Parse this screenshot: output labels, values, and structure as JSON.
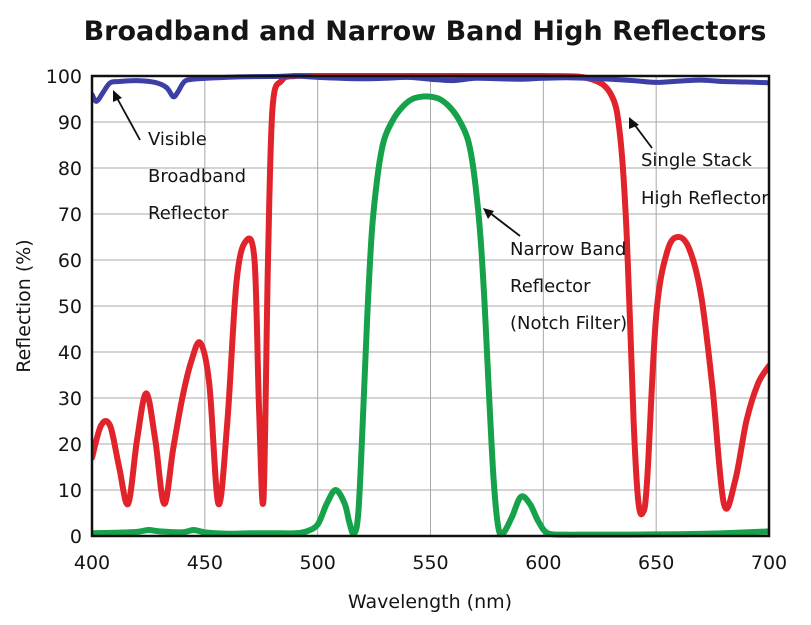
{
  "chart_data": {
    "type": "line",
    "title": "Broadband and Narrow Band High Reflectors",
    "xlabel": "Wavelength (nm)",
    "ylabel": "Reflection (%)",
    "xlim": [
      400,
      700
    ],
    "ylim": [
      0,
      100
    ],
    "xticks": [
      400,
      450,
      500,
      550,
      600,
      650,
      700
    ],
    "yticks": [
      0,
      10,
      20,
      30,
      40,
      50,
      60,
      70,
      80,
      90,
      100
    ],
    "grid": true,
    "series": [
      {
        "name": "Visible Broadband Reflector",
        "color": "#3b3fa6",
        "x": [
          400,
          402,
          405,
          408,
          412,
          420,
          428,
          433,
          436,
          438,
          441,
          445,
          455,
          465,
          480,
          490,
          500,
          510,
          520,
          530,
          540,
          550,
          560,
          570,
          580,
          590,
          600,
          610,
          620,
          630,
          640,
          650,
          660,
          670,
          680,
          690,
          700
        ],
        "y": [
          96,
          94.5,
          96.5,
          98.5,
          98.8,
          99,
          98.6,
          97.5,
          95.5,
          96.5,
          98.8,
          99.3,
          99.6,
          99.8,
          99.9,
          100,
          99.7,
          99.5,
          99.4,
          99.5,
          99.7,
          99.3,
          99,
          99.5,
          99.4,
          99.3,
          99.5,
          99.6,
          99.5,
          99.3,
          99,
          98.6,
          98.9,
          99.1,
          98.8,
          98.7,
          98.5
        ]
      },
      {
        "name": "Single Stack High Reflector",
        "color": "#e1232c",
        "x": [
          400,
          404,
          408,
          412,
          416,
          420,
          424,
          428,
          432,
          436,
          440,
          444,
          448,
          452,
          456,
          460,
          464,
          468,
          472,
          474,
          476,
          478,
          480,
          484,
          490,
          500,
          520,
          540,
          560,
          580,
          600,
          620,
          630,
          634,
          637,
          640,
          642,
          644,
          646,
          650,
          655,
          660,
          665,
          670,
          675,
          680,
          685,
          690,
          695,
          700
        ],
        "y": [
          17,
          24,
          24,
          15,
          7,
          21,
          31,
          21,
          7,
          19,
          30,
          38,
          42,
          33,
          7,
          25,
          55,
          64,
          60,
          28,
          8,
          60,
          93,
          99,
          100,
          100,
          100,
          100,
          100,
          100,
          100,
          99.5,
          96,
          87,
          65,
          25,
          8,
          5,
          12,
          48,
          62,
          65,
          62,
          52,
          32,
          7,
          12,
          25,
          33,
          37
        ]
      },
      {
        "name": "Narrow Band Reflector (Notch Filter)",
        "color": "#16a24a",
        "x": [
          400,
          410,
          420,
          425,
          430,
          440,
          445,
          450,
          460,
          470,
          480,
          490,
          495,
          500,
          504,
          508,
          512,
          514,
          516,
          518,
          520,
          522,
          524,
          526,
          528,
          530,
          534,
          538,
          542,
          546,
          550,
          554,
          558,
          562,
          566,
          568,
          570,
          572,
          574,
          576,
          578,
          580,
          582,
          586,
          590,
          594,
          598,
          602,
          610,
          620,
          640,
          660,
          680,
          700
        ],
        "y": [
          0.6,
          0.7,
          0.9,
          1.3,
          1,
          0.8,
          1.3,
          0.8,
          0.5,
          0.6,
          0.6,
          0.6,
          1,
          2.5,
          7,
          10,
          7,
          3,
          0.5,
          5,
          25,
          48,
          66,
          76,
          83,
          87,
          91,
          93.5,
          95,
          95.5,
          95.5,
          95,
          93.5,
          91,
          87,
          83,
          76,
          66,
          50,
          30,
          12,
          2,
          0.5,
          4,
          8.5,
          7,
          3,
          0.6,
          0.3,
          0.3,
          0.3,
          0.4,
          0.6,
          1
        ]
      }
    ],
    "annotations": [
      {
        "lines": [
          "Visible",
          "Broadband",
          "Reflector"
        ],
        "points_to": [
          410,
          98.5
        ]
      },
      {
        "lines": [
          "Single Stack",
          "High Reflector"
        ],
        "points_to": [
          636,
          90
        ]
      },
      {
        "lines": [
          "Narrow Band",
          "Reflector",
          "(Notch Filter)"
        ],
        "points_to": [
          574,
          70
        ]
      }
    ]
  }
}
